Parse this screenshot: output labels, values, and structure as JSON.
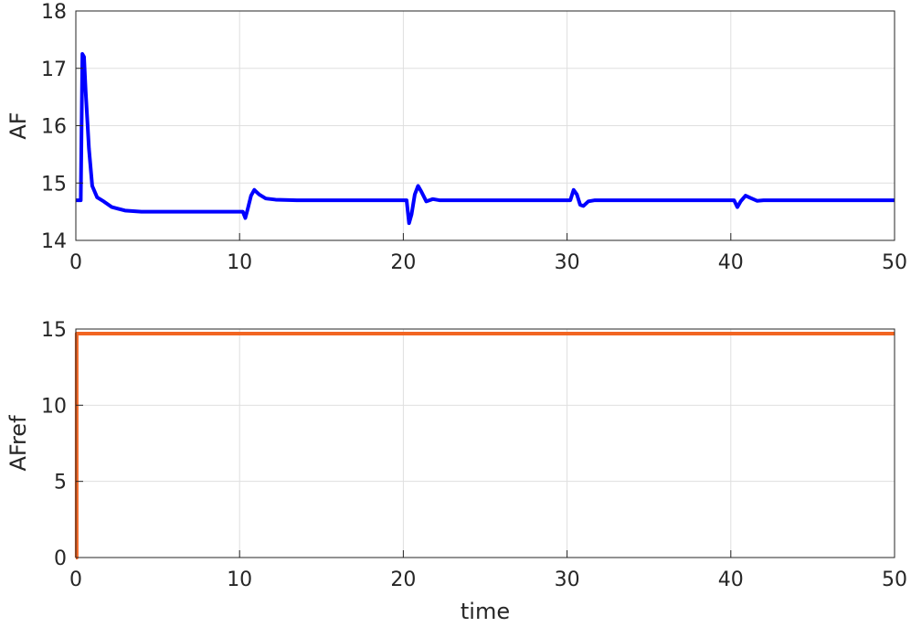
{
  "chart_data": [
    {
      "type": "line",
      "title": "",
      "xlabel": "",
      "ylabel": "AF",
      "xlim": [
        0,
        50
      ],
      "ylim": [
        14,
        18
      ],
      "xticks": [
        0,
        10,
        20,
        30,
        40,
        50
      ],
      "yticks": [
        14,
        15,
        16,
        17,
        18
      ],
      "grid": true,
      "legend": "none",
      "series": [
        {
          "color": "#0000ff",
          "x": [
            0,
            0.3,
            0.4,
            0.5,
            0.6,
            0.8,
            1.0,
            1.3,
            1.7,
            2.2,
            3.0,
            4.0,
            6.0,
            8.0,
            10.0,
            10.2,
            10.35,
            10.5,
            10.7,
            10.9,
            11.2,
            11.6,
            12.2,
            13.5,
            20.0,
            20.2,
            20.35,
            20.5,
            20.7,
            20.9,
            21.1,
            21.4,
            21.8,
            22.2,
            23.0,
            30.0,
            30.2,
            30.4,
            30.6,
            30.8,
            31.0,
            31.3,
            31.7,
            33.0,
            40.0,
            40.2,
            40.4,
            40.6,
            40.9,
            41.2,
            41.6,
            42.0,
            50.0
          ],
          "y": [
            14.7,
            14.7,
            17.25,
            17.2,
            16.6,
            15.6,
            14.95,
            14.75,
            14.68,
            14.58,
            14.52,
            14.5,
            14.5,
            14.5,
            14.5,
            14.5,
            14.39,
            14.55,
            14.78,
            14.88,
            14.8,
            14.73,
            14.71,
            14.7,
            14.7,
            14.7,
            14.3,
            14.45,
            14.8,
            14.95,
            14.85,
            14.68,
            14.72,
            14.7,
            14.7,
            14.7,
            14.7,
            14.88,
            14.8,
            14.62,
            14.6,
            14.68,
            14.7,
            14.7,
            14.7,
            14.7,
            14.58,
            14.68,
            14.78,
            14.74,
            14.69,
            14.7,
            14.7
          ]
        }
      ]
    },
    {
      "type": "line",
      "title": "",
      "xlabel": "time",
      "ylabel": "AFref",
      "xlim": [
        0,
        50
      ],
      "ylim": [
        0,
        15
      ],
      "xticks": [
        0,
        10,
        20,
        30,
        40,
        50
      ],
      "yticks": [
        0,
        5,
        10,
        15
      ],
      "grid": true,
      "legend": "none",
      "series": [
        {
          "color": "#f26522",
          "x": [
            0,
            0.05,
            0.05,
            50
          ],
          "y": [
            0,
            0,
            14.7,
            14.7
          ]
        }
      ]
    }
  ]
}
